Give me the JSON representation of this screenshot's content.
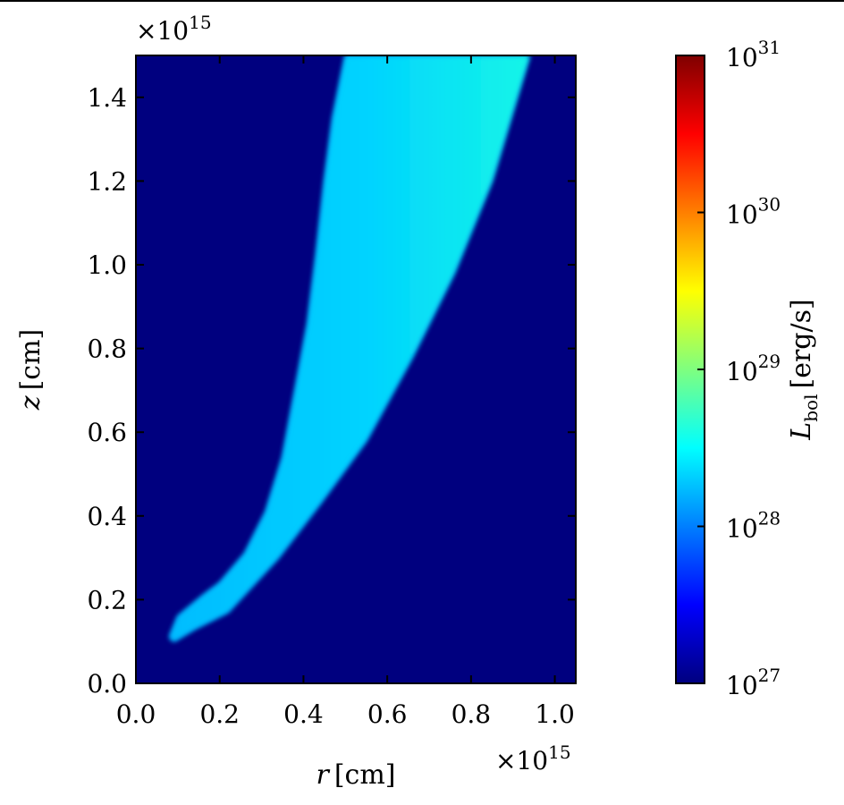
{
  "chart_data": {
    "type": "heatmap",
    "xlabel_var": "r",
    "xlabel_unit": "[cm]",
    "ylabel_var": "z",
    "ylabel_unit": "[cm]",
    "x_multiplier": "×10",
    "x_multiplier_exp": "15",
    "y_multiplier": "×10",
    "y_multiplier_exp": "15",
    "xlim": [
      0.0,
      1.05
    ],
    "ylim": [
      0.0,
      1.5
    ],
    "x_ticks": [
      "0.0",
      "0.2",
      "0.4",
      "0.6",
      "0.8",
      "1.0"
    ],
    "x_tick_values": [
      0.0,
      0.2,
      0.4,
      0.6,
      0.8,
      1.0
    ],
    "y_ticks": [
      "0.0",
      "0.2",
      "0.4",
      "0.6",
      "0.8",
      "1.0",
      "1.2",
      "1.4"
    ],
    "y_tick_values": [
      0.0,
      0.2,
      0.4,
      0.6,
      0.8,
      1.0,
      1.2,
      1.4
    ],
    "background_value_log10": 27,
    "emitting_region": {
      "left_edge": [
        [
          0.08,
          0.11
        ],
        [
          0.1,
          0.16
        ],
        [
          0.16,
          0.21
        ],
        [
          0.2,
          0.24
        ],
        [
          0.26,
          0.31
        ],
        [
          0.31,
          0.41
        ],
        [
          0.35,
          0.54
        ],
        [
          0.38,
          0.7
        ],
        [
          0.41,
          0.86
        ],
        [
          0.43,
          1.02
        ],
        [
          0.45,
          1.2
        ],
        [
          0.47,
          1.35
        ],
        [
          0.5,
          1.5
        ]
      ],
      "right_edge": [
        [
          0.94,
          1.5
        ],
        [
          0.91,
          1.4
        ],
        [
          0.85,
          1.2
        ],
        [
          0.76,
          0.98
        ],
        [
          0.66,
          0.78
        ],
        [
          0.55,
          0.58
        ],
        [
          0.44,
          0.43
        ],
        [
          0.34,
          0.3
        ],
        [
          0.22,
          0.17
        ],
        [
          0.14,
          0.13
        ],
        [
          0.09,
          0.1
        ]
      ],
      "inner_value_log10": 28.3,
      "outer_edge_value_log10": 28.6
    },
    "colorbar": {
      "label_var": "L",
      "label_sub": "bol",
      "label_unit": "[erg/s]",
      "scale": "log",
      "range_log10": [
        27,
        31
      ],
      "colormap": "jet",
      "tick_base": "10",
      "tick_exps": [
        "27",
        "28",
        "29",
        "30",
        "31"
      ],
      "tick_values_log10": [
        27,
        28,
        29,
        30,
        31
      ]
    }
  },
  "colors": {
    "jet_stops": [
      "#00007f",
      "#0000ff",
      "#007fff",
      "#00ffff",
      "#7fff7f",
      "#ffff00",
      "#ff7f00",
      "#ff0000",
      "#7f0000"
    ],
    "background": "#00007f"
  }
}
